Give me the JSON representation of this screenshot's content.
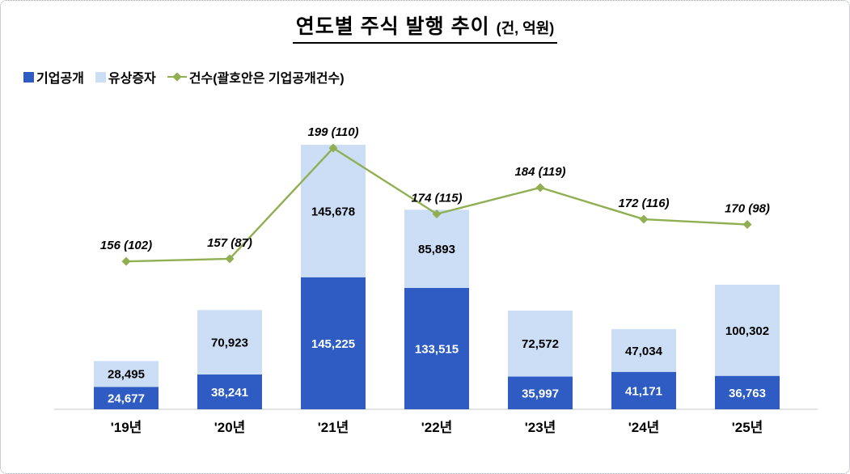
{
  "title": {
    "main": "연도별 주식 발행 추이",
    "unit": "(건, 억원)"
  },
  "legend": {
    "items": [
      {
        "label": "기업공개",
        "marker": "square",
        "color": "#2e5cc3"
      },
      {
        "label": "유상증자",
        "marker": "square",
        "color": "#cbdef6"
      },
      {
        "label": "건수(괄호안은 기업공개건수)",
        "marker": "diamond-line",
        "color": "#8faf52"
      }
    ]
  },
  "chart_data": {
    "type": "bar",
    "subtype": "stacked-bar-with-line",
    "title": "연도별 주식 발행 추이 (건, 억원)",
    "value_axis_unit": "억원",
    "count_axis_unit": "건",
    "grid": false,
    "legend_position": "top-left",
    "categories": [
      "'19년",
      "'20년",
      "'21년",
      "'22년",
      "'23년",
      "'24년",
      "'25년"
    ],
    "series": [
      {
        "name": "기업공개",
        "type": "bar",
        "stack": true,
        "color": "#2e5cc3",
        "text_color": "#ffffff",
        "values": [
          24677,
          38241,
          145225,
          133515,
          35997,
          41171,
          36763
        ],
        "labels": [
          "24,677",
          "38,241",
          "145,225",
          "133,515",
          "35,997",
          "41,171",
          "36,763"
        ]
      },
      {
        "name": "유상증자",
        "type": "bar",
        "stack": true,
        "color": "#cbdef6",
        "text_color": "#000000",
        "values": [
          28495,
          70923,
          145678,
          85893,
          72572,
          47034,
          100302
        ],
        "labels": [
          "28,495",
          "70,923",
          "145,678",
          "85,893",
          "72,572",
          "47,034",
          "100,302"
        ]
      },
      {
        "name": "건수(괄호안은 기업공개건수)",
        "type": "line",
        "color": "#8faf52",
        "values": [
          156,
          157,
          199,
          174,
          184,
          172,
          170
        ],
        "ipo_counts": [
          102,
          87,
          110,
          115,
          119,
          116,
          98
        ],
        "labels": [
          "156 (102)",
          "157 (87)",
          "199 (110)",
          "174 (115)",
          "184 (119)",
          "172 (116)",
          "170 (98)"
        ]
      }
    ],
    "totals": [
      53172,
      109164,
      290903,
      219408,
      108569,
      88205,
      137065
    ]
  }
}
